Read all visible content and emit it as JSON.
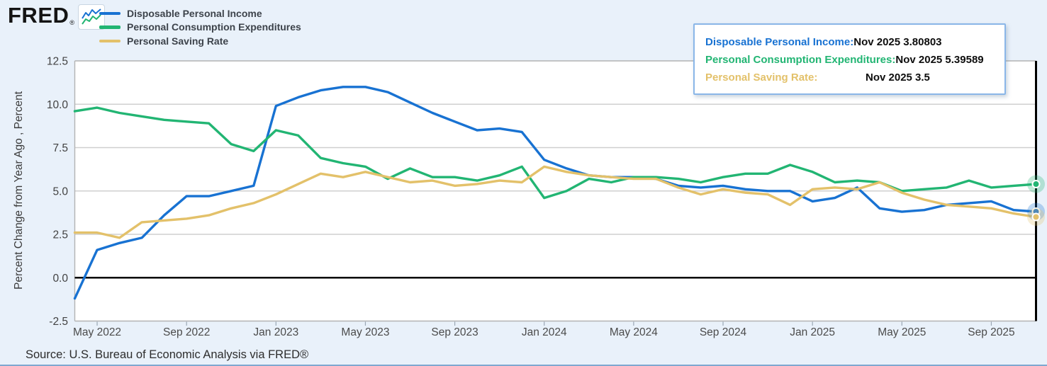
{
  "logo": {
    "text": "FRED",
    "registered": "®"
  },
  "palette": {
    "dpi_blue": "#1872d2",
    "pce_green": "#22b573",
    "psr_gold": "#e3c16a",
    "page_background": "#e9f1fa",
    "plot_background": "#ffffff",
    "gridline": "#cfcfcf",
    "zero_line": "#000000",
    "tooltip_border": "#8ab6e8"
  },
  "legend": {
    "items": [
      {
        "label": "Disposable Personal Income",
        "color": "#1872d2"
      },
      {
        "label": "Personal Consumption Expenditures",
        "color": "#22b573"
      },
      {
        "label": "Personal Saving Rate",
        "color": "#e3c16a"
      }
    ]
  },
  "tooltip": {
    "rows": [
      {
        "label": "Disposable Personal Income:",
        "value": "Nov 2025 3.80803",
        "color": "#1872d2"
      },
      {
        "label": "Personal Consumption Expenditures:",
        "value": "Nov 2025 5.39589",
        "color": "#22b573"
      },
      {
        "label": "Personal Saving Rate:",
        "value": "Nov 2025 3.5",
        "color": "#e3c16a"
      }
    ]
  },
  "source": {
    "text": "Source: U.S. Bureau of Economic Analysis via FRED®"
  },
  "chart_data": {
    "type": "line",
    "title": "",
    "xlabel": "",
    "ylabel": "Percent Change from Year Ago , Percent",
    "ylim": [
      -2.5,
      12.5
    ],
    "grid": true,
    "zero_line": true,
    "end_markers": true,
    "legend_position": "top-left",
    "yticks": [
      {
        "value": 12.5,
        "label": "12.5"
      },
      {
        "value": 10.0,
        "label": "10.0"
      },
      {
        "value": 7.5,
        "label": "7.5"
      },
      {
        "value": 5.0,
        "label": "5.0"
      },
      {
        "value": 2.5,
        "label": "2.5"
      },
      {
        "value": 0.0,
        "label": "0.0"
      },
      {
        "value": -2.5,
        "label": "-2.5"
      }
    ],
    "x": [
      "Apr 2022",
      "May 2022",
      "Jun 2022",
      "Jul 2022",
      "Aug 2022",
      "Sep 2022",
      "Oct 2022",
      "Nov 2022",
      "Dec 2022",
      "Jan 2023",
      "Feb 2023",
      "Mar 2023",
      "Apr 2023",
      "May 2023",
      "Jun 2023",
      "Jul 2023",
      "Aug 2023",
      "Sep 2023",
      "Oct 2023",
      "Nov 2023",
      "Dec 2023",
      "Jan 2024",
      "Feb 2024",
      "Mar 2024",
      "Apr 2024",
      "May 2024",
      "Jun 2024",
      "Jul 2024",
      "Aug 2024",
      "Sep 2024",
      "Oct 2024",
      "Nov 2024",
      "Dec 2024",
      "Jan 2025",
      "Feb 2025",
      "Mar 2025",
      "Apr 2025",
      "May 2025",
      "Jun 2025",
      "Jul 2025",
      "Aug 2025",
      "Sep 2025",
      "Oct 2025",
      "Nov 2025"
    ],
    "x_tick_indices": [
      1,
      5,
      9,
      13,
      17,
      21,
      25,
      29,
      33,
      37,
      41
    ],
    "x_tick_labels": [
      "May 2022",
      "Sep 2022",
      "Jan 2023",
      "May 2023",
      "Sep 2023",
      "Jan 2024",
      "May 2024",
      "Sep 2024",
      "Jan 2025",
      "May 2025",
      "Sep 2025"
    ],
    "series": [
      {
        "id": "dpi",
        "name": "Disposable Personal Income",
        "color": "#1872d2",
        "latest": {
          "date": "Nov 2025",
          "value": 3.80803
        },
        "values": [
          -1.2,
          1.6,
          2.0,
          2.3,
          3.6,
          4.7,
          4.7,
          5.0,
          5.3,
          9.9,
          10.4,
          10.8,
          11.0,
          11.0,
          10.7,
          10.1,
          9.5,
          9.0,
          8.5,
          8.6,
          8.4,
          6.8,
          6.3,
          5.9,
          5.8,
          5.8,
          5.7,
          5.3,
          5.2,
          5.3,
          5.1,
          5.0,
          5.0,
          4.4,
          4.6,
          5.2,
          4.0,
          3.8,
          3.9,
          4.2,
          4.3,
          4.4,
          3.9,
          3.80803
        ]
      },
      {
        "id": "pce",
        "name": "Personal Consumption Expenditures",
        "color": "#22b573",
        "latest": {
          "date": "Nov 2025",
          "value": 5.39589
        },
        "values": [
          9.6,
          9.8,
          9.5,
          9.3,
          9.1,
          9.0,
          8.9,
          7.7,
          7.3,
          8.5,
          8.2,
          6.9,
          6.6,
          6.4,
          5.7,
          6.3,
          5.8,
          5.8,
          5.6,
          5.9,
          6.4,
          4.6,
          5.0,
          5.7,
          5.5,
          5.8,
          5.8,
          5.7,
          5.5,
          5.8,
          6.0,
          6.0,
          6.5,
          6.1,
          5.5,
          5.6,
          5.5,
          5.0,
          5.1,
          5.2,
          5.6,
          5.2,
          5.3,
          5.39589
        ]
      },
      {
        "id": "psr",
        "name": "Personal Saving Rate",
        "color": "#e3c16a",
        "latest": {
          "date": "Nov 2025",
          "value": 3.5
        },
        "values": [
          2.6,
          2.6,
          2.3,
          3.2,
          3.3,
          3.4,
          3.6,
          4.0,
          4.3,
          4.8,
          5.4,
          6.0,
          5.8,
          6.1,
          5.8,
          5.5,
          5.6,
          5.3,
          5.4,
          5.6,
          5.5,
          6.4,
          6.1,
          5.9,
          5.8,
          5.7,
          5.7,
          5.2,
          4.8,
          5.1,
          4.9,
          4.8,
          4.2,
          5.1,
          5.2,
          5.1,
          5.5,
          4.9,
          4.5,
          4.2,
          4.1,
          4.0,
          3.7,
          3.5
        ]
      }
    ]
  }
}
